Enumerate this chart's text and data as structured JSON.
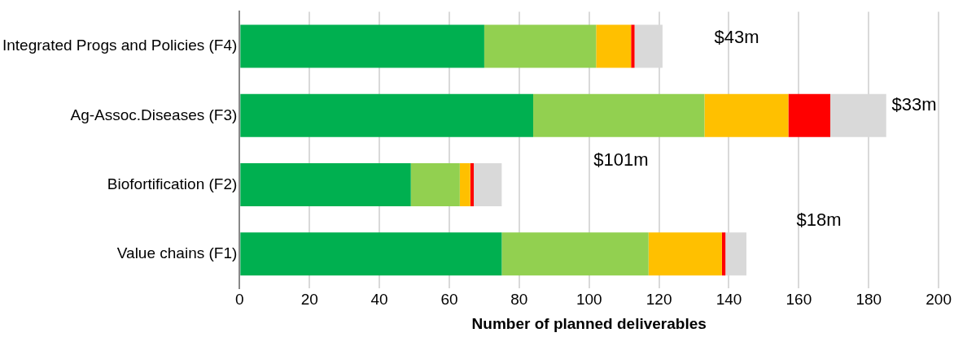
{
  "chart_data": {
    "type": "bar",
    "orientation": "horizontal",
    "stacked": true,
    "xlabel": "Number of planned deliverables",
    "categories": [
      "Integrated Progs and Policies (F4)",
      "Ag-Assoc.Diseases (F3)",
      "Biofortification (F2)",
      "Value chains (F1)"
    ],
    "series": [
      {
        "color": "#00b050",
        "values": [
          70,
          84,
          49,
          75
        ]
      },
      {
        "color": "#92d050",
        "values": [
          32,
          49,
          14,
          42
        ]
      },
      {
        "color": "#ffc000",
        "values": [
          10,
          24,
          3,
          21
        ]
      },
      {
        "color": "#ff0000",
        "values": [
          1,
          12,
          1,
          1
        ]
      },
      {
        "color": "#d9d9d9",
        "values": [
          8,
          16,
          8,
          6
        ]
      }
    ],
    "xlim": [
      0,
      200
    ],
    "xticks": [
      0,
      20,
      40,
      60,
      80,
      100,
      120,
      140,
      160,
      180,
      200
    ],
    "grid": "x",
    "legend": false,
    "annotations": [
      "$43m",
      "$33m",
      "$101m",
      "$18m"
    ]
  }
}
